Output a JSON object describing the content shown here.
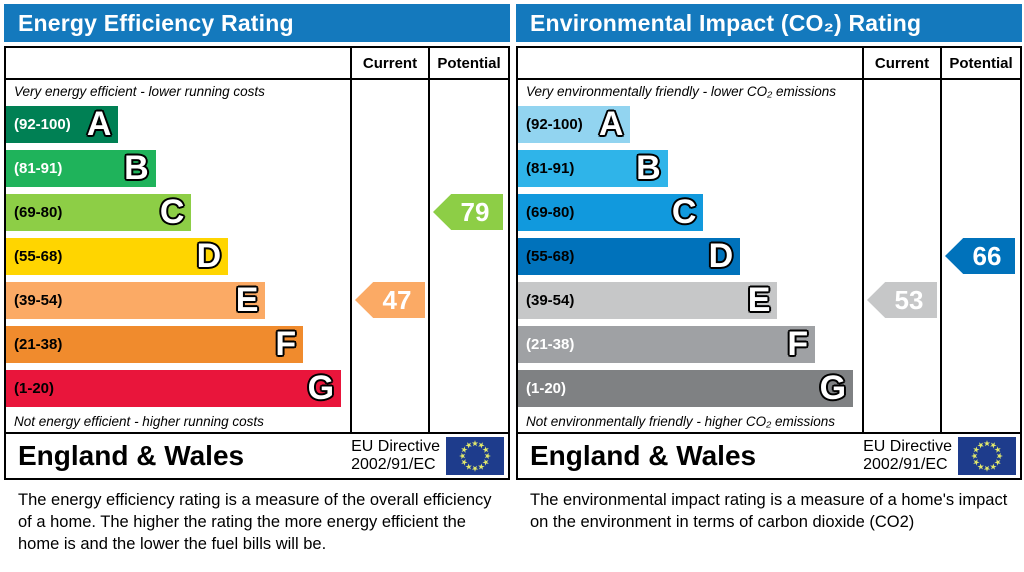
{
  "colors": {
    "header_bg": "#1479bd",
    "table_border": "#000000",
    "flag_blue": "#1e3c8c",
    "flag_star": "#e2e96b"
  },
  "panels": [
    {
      "title": "Energy Efficiency Rating",
      "header_bg": "#1479bd",
      "columns": {
        "current": "Current",
        "potential": "Potential"
      },
      "top_caption": "Very energy efficient - lower running costs",
      "bottom_caption": "Not energy efficient - higher running costs",
      "bands": [
        {
          "range": "(92-100)",
          "letter": "A",
          "color": "#008054",
          "label_color": "#ffffff",
          "width_pct": 32.7
        },
        {
          "range": "(81-91)",
          "letter": "B",
          "color": "#1fb35b",
          "label_color": "#ffffff",
          "width_pct": 43.5
        },
        {
          "range": "(69-80)",
          "letter": "C",
          "color": "#8dce46",
          "label_color": "#000000",
          "width_pct": 53.9
        },
        {
          "range": "(55-68)",
          "letter": "D",
          "color": "#ffd500",
          "label_color": "#000000",
          "width_pct": 64.6
        },
        {
          "range": "(39-54)",
          "letter": "E",
          "color": "#fbaa65",
          "label_color": "#000000",
          "width_pct": 75.4
        },
        {
          "range": "(21-38)",
          "letter": "F",
          "color": "#f08b2d",
          "label_color": "#000000",
          "width_pct": 86.4
        },
        {
          "range": "(1-20)",
          "letter": "G",
          "color": "#e9153b",
          "label_color": "#000000",
          "width_pct": 97.4
        }
      ],
      "current": {
        "value": "47",
        "color": "#fbaa65",
        "row": 4
      },
      "potential": {
        "value": "79",
        "color": "#8dce46",
        "row": 2
      },
      "footer": {
        "region": "England & Wales",
        "directive_line1": "EU Directive",
        "directive_line2": "2002/91/EC"
      },
      "description": "The energy efficiency rating is a measure of the overall efficiency of a home.  The higher the rating the more energy efficient the home is and the lower the fuel bills will be."
    },
    {
      "title": "Environmental Impact (CO₂) Rating",
      "header_bg": "#1479bd",
      "columns": {
        "current": "Current",
        "potential": "Potential"
      },
      "top_caption": "Very environmentally friendly - lower CO₂ emissions",
      "bottom_caption": "Not environmentally friendly - higher CO₂ emissions",
      "bands": [
        {
          "range": "(92-100)",
          "letter": "A",
          "color": "#92d4f0",
          "label_color": "#000000",
          "width_pct": 32.7
        },
        {
          "range": "(81-91)",
          "letter": "B",
          "color": "#2fb4e9",
          "label_color": "#000000",
          "width_pct": 43.5
        },
        {
          "range": "(69-80)",
          "letter": "C",
          "color": "#1199dd",
          "label_color": "#000000",
          "width_pct": 53.9
        },
        {
          "range": "(55-68)",
          "letter": "D",
          "color": "#0072bb",
          "label_color": "#000000",
          "width_pct": 64.6
        },
        {
          "range": "(39-54)",
          "letter": "E",
          "color": "#c6c7c8",
          "label_color": "#000000",
          "width_pct": 75.4
        },
        {
          "range": "(21-38)",
          "letter": "F",
          "color": "#9fa1a4",
          "label_color": "#ffffff",
          "width_pct": 86.4
        },
        {
          "range": "(1-20)",
          "letter": "G",
          "color": "#7f8183",
          "label_color": "#ffffff",
          "width_pct": 97.4
        }
      ],
      "current": {
        "value": "53",
        "color": "#c6c7c8",
        "row": 4
      },
      "potential": {
        "value": "66",
        "color": "#0072bb",
        "row": 3
      },
      "footer": {
        "region": "England & Wales",
        "directive_line1": "EU Directive",
        "directive_line2": "2002/91/EC"
      },
      "description": "The environmental impact rating is a measure of a home's impact on the environment in terms of carbon dioxide (CO2)"
    }
  ],
  "chart_data": [
    {
      "type": "bar",
      "title": "Energy Efficiency Rating",
      "orientation": "horizontal",
      "categories": [
        "A",
        "B",
        "C",
        "D",
        "E",
        "F",
        "G"
      ],
      "band_ranges": [
        [
          92,
          100
        ],
        [
          81,
          91
        ],
        [
          69,
          80
        ],
        [
          55,
          68
        ],
        [
          39,
          54
        ],
        [
          21,
          38
        ],
        [
          1,
          20
        ]
      ],
      "band_colors": [
        "#008054",
        "#1fb35b",
        "#8dce46",
        "#ffd500",
        "#fbaa65",
        "#f08b2d",
        "#e9153b"
      ],
      "series": [
        {
          "name": "Current",
          "values": [
            47
          ],
          "band": "E"
        },
        {
          "name": "Potential",
          "values": [
            79
          ],
          "band": "C"
        }
      ],
      "xlim": [
        1,
        100
      ],
      "annotations": [
        "Very energy efficient - lower running costs",
        "Not energy efficient - higher running costs",
        "England & Wales",
        "EU Directive 2002/91/EC"
      ]
    },
    {
      "type": "bar",
      "title": "Environmental Impact (CO₂) Rating",
      "orientation": "horizontal",
      "categories": [
        "A",
        "B",
        "C",
        "D",
        "E",
        "F",
        "G"
      ],
      "band_ranges": [
        [
          92,
          100
        ],
        [
          81,
          91
        ],
        [
          69,
          80
        ],
        [
          55,
          68
        ],
        [
          39,
          54
        ],
        [
          21,
          38
        ],
        [
          1,
          20
        ]
      ],
      "band_colors": [
        "#92d4f0",
        "#2fb4e9",
        "#1199dd",
        "#0072bb",
        "#c6c7c8",
        "#9fa1a4",
        "#7f8183"
      ],
      "series": [
        {
          "name": "Current",
          "values": [
            53
          ],
          "band": "E"
        },
        {
          "name": "Potential",
          "values": [
            66
          ],
          "band": "D"
        }
      ],
      "xlim": [
        1,
        100
      ],
      "annotations": [
        "Very environmentally friendly - lower CO₂ emissions",
        "Not environmentally friendly - higher CO₂ emissions",
        "England & Wales",
        "EU Directive 2002/91/EC"
      ]
    }
  ]
}
